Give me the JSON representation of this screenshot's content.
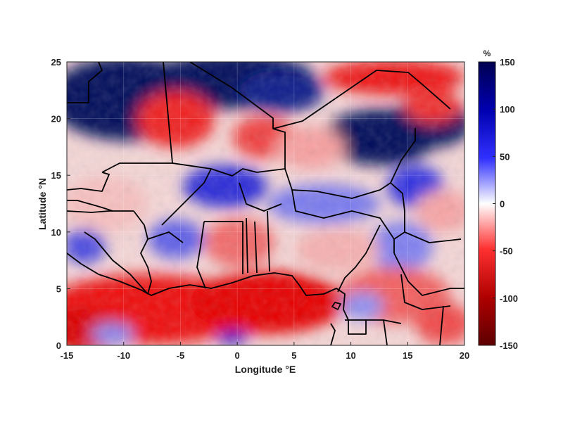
{
  "map": {
    "x_label": "Longitude °E",
    "y_label": "Latitude °N",
    "x_range": [
      -15,
      20
    ],
    "y_range": [
      0,
      25
    ],
    "x_ticks": [
      -15,
      -10,
      -5,
      0,
      5,
      10,
      15,
      20
    ],
    "y_ticks": [
      0,
      5,
      10,
      15,
      20,
      25
    ],
    "colorbar": {
      "unit": "%",
      "range": [
        -150,
        150
      ],
      "ticks": [
        150,
        100,
        50,
        0,
        -50,
        -100,
        -150
      ],
      "colormap": [
        "#5c0000",
        "#b00000",
        "#ff3030",
        "#ffffff",
        "#3030ff",
        "#0000b0",
        "#000050"
      ]
    }
  }
}
